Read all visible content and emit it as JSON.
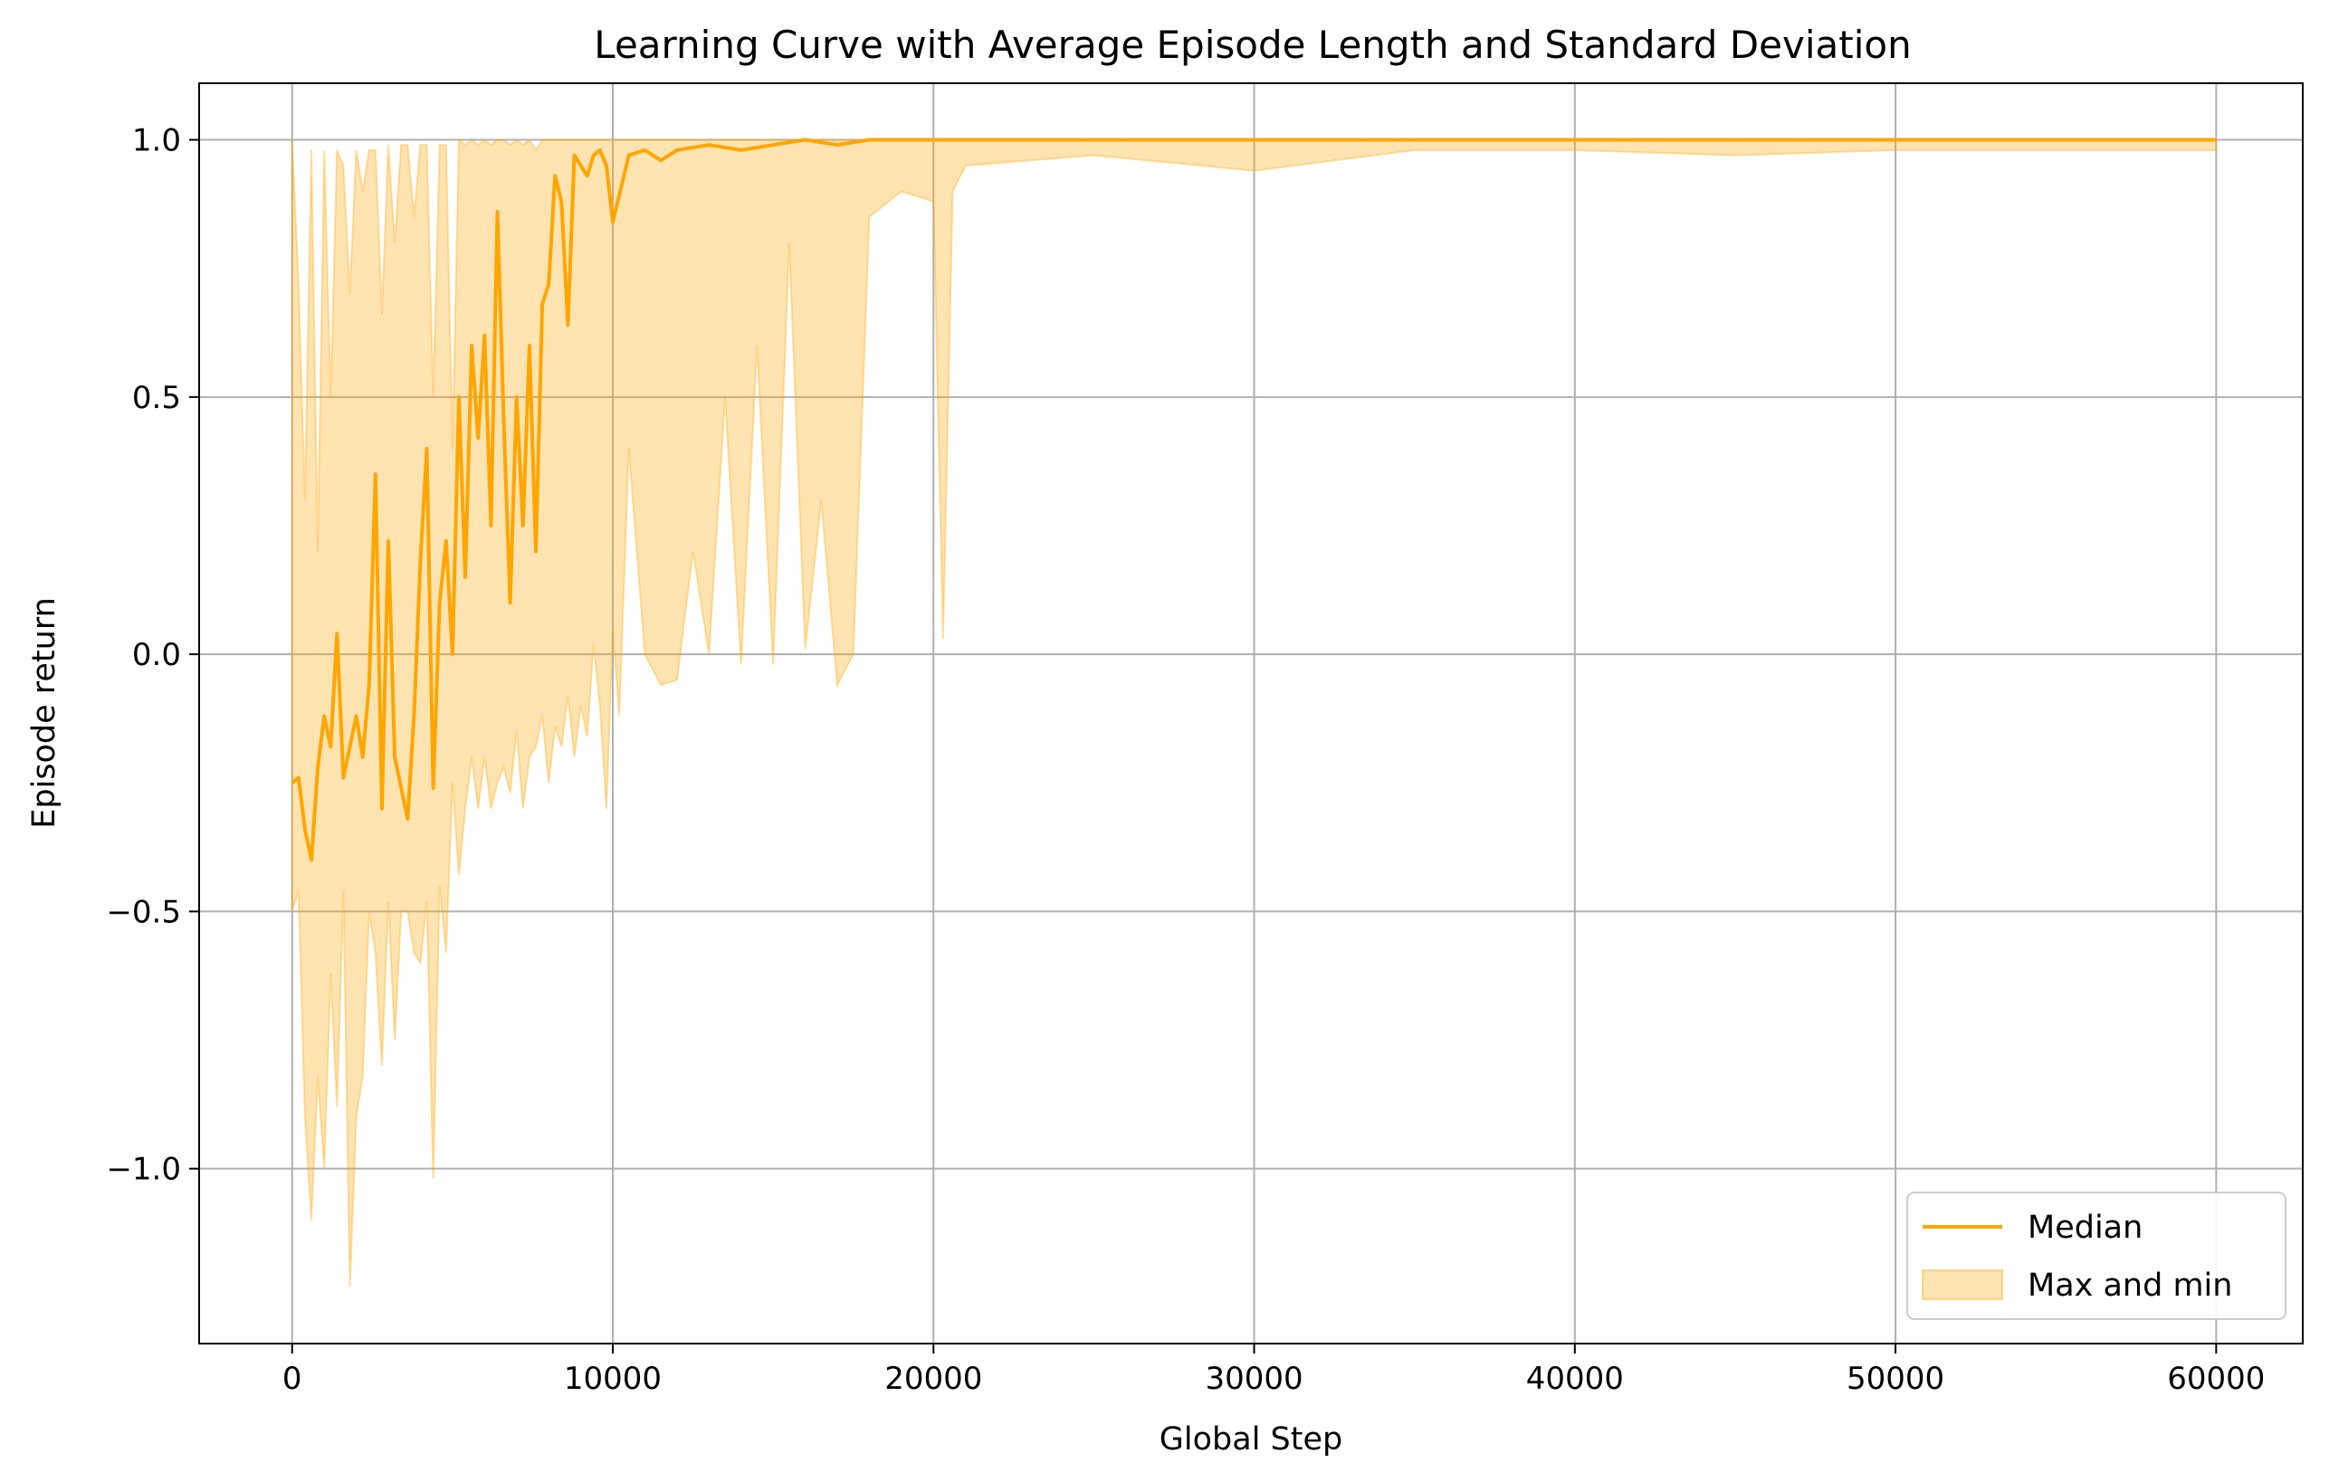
{
  "chart_data": {
    "type": "line",
    "title": "Learning Curve with Average Episode Length and Standard Deviation",
    "xlabel": "Global Step",
    "ylabel": "Episode return",
    "xlim": [
      -2900,
      62700
    ],
    "ylim": [
      -1.34,
      1.11
    ],
    "xticks": [
      0,
      10000,
      20000,
      30000,
      40000,
      50000,
      60000
    ],
    "xtick_labels": [
      "0",
      "10000",
      "20000",
      "30000",
      "40000",
      "50000",
      "60000"
    ],
    "yticks": [
      -1.0,
      -0.5,
      0.0,
      0.5,
      1.0
    ],
    "ytick_labels": [
      "−1.0",
      "−0.5",
      "0.0",
      "0.5",
      "1.0"
    ],
    "grid": true,
    "legend_position": "lower-right",
    "colors": {
      "line": "#FFA500",
      "band": "#FFA500",
      "grid": "#B0B0B0"
    },
    "series": [
      {
        "name": "Median",
        "kind": "line",
        "x": [
          0,
          200,
          400,
          600,
          800,
          1000,
          1200,
          1400,
          1600,
          1800,
          2000,
          2200,
          2400,
          2600,
          2800,
          3000,
          3200,
          3400,
          3600,
          3800,
          4000,
          4200,
          4400,
          4600,
          4800,
          5000,
          5200,
          5400,
          5600,
          5800,
          6000,
          6200,
          6400,
          6600,
          6800,
          7000,
          7200,
          7400,
          7600,
          7800,
          8000,
          8200,
          8400,
          8600,
          8800,
          9000,
          9200,
          9400,
          9600,
          9800,
          10000,
          10500,
          11000,
          11500,
          12000,
          13000,
          14000,
          15000,
          16000,
          17000,
          18000,
          20000,
          25000,
          30000,
          40000,
          50000,
          60000
        ],
        "y": [
          -0.25,
          -0.24,
          -0.34,
          -0.4,
          -0.22,
          -0.12,
          -0.18,
          0.04,
          -0.24,
          -0.18,
          -0.12,
          -0.2,
          -0.06,
          0.35,
          -0.3,
          0.22,
          -0.2,
          -0.26,
          -0.32,
          -0.12,
          0.18,
          0.4,
          -0.26,
          0.1,
          0.22,
          0.0,
          0.5,
          0.15,
          0.6,
          0.42,
          0.62,
          0.25,
          0.86,
          0.45,
          0.1,
          0.5,
          0.25,
          0.6,
          0.2,
          0.68,
          0.72,
          0.93,
          0.88,
          0.64,
          0.97,
          0.95,
          0.93,
          0.97,
          0.98,
          0.95,
          0.84,
          0.97,
          0.98,
          0.96,
          0.98,
          0.99,
          0.98,
          0.99,
          1.0,
          0.99,
          1.0,
          1.0,
          1.0,
          1.0,
          1.0,
          1.0,
          1.0
        ]
      },
      {
        "name": "Max and min",
        "kind": "band",
        "x": [
          0,
          200,
          400,
          600,
          800,
          1000,
          1200,
          1400,
          1600,
          1800,
          2000,
          2200,
          2400,
          2600,
          2800,
          3000,
          3200,
          3400,
          3600,
          3800,
          4000,
          4200,
          4400,
          4600,
          4800,
          5000,
          5200,
          5400,
          5600,
          5800,
          6000,
          6200,
          6400,
          6600,
          6800,
          7000,
          7200,
          7400,
          7600,
          7800,
          8000,
          8200,
          8400,
          8600,
          8800,
          9000,
          9200,
          9400,
          9600,
          9800,
          10000,
          10200,
          10500,
          11000,
          11500,
          12000,
          12500,
          13000,
          13500,
          14000,
          14500,
          15000,
          15500,
          16000,
          16500,
          17000,
          17500,
          18000,
          19000,
          20000,
          20300,
          20600,
          21000,
          25000,
          30000,
          35000,
          40000,
          45000,
          50000,
          55000,
          60000
        ],
        "upper": [
          1.0,
          0.72,
          0.3,
          0.98,
          0.2,
          0.98,
          0.5,
          0.98,
          0.95,
          0.7,
          0.98,
          0.9,
          0.98,
          0.98,
          0.66,
          0.99,
          0.8,
          0.99,
          0.99,
          0.85,
          0.99,
          0.99,
          0.5,
          0.99,
          0.99,
          0.4,
          1.0,
          0.99,
          1.0,
          0.99,
          1.0,
          0.99,
          1.0,
          1.0,
          0.99,
          1.0,
          0.99,
          1.0,
          0.98,
          1.0,
          1.0,
          1.0,
          1.0,
          1.0,
          1.0,
          1.0,
          1.0,
          1.0,
          1.0,
          1.0,
          1.0,
          1.0,
          1.0,
          1.0,
          1.0,
          1.0,
          1.0,
          1.0,
          1.0,
          1.0,
          1.0,
          1.0,
          1.0,
          1.0,
          1.0,
          1.0,
          1.0,
          1.0,
          1.0,
          1.0,
          1.0,
          1.0,
          1.0,
          1.0,
          1.0,
          1.0,
          1.0,
          1.0,
          1.0,
          1.0,
          1.0
        ],
        "lower": [
          -0.5,
          -0.46,
          -0.9,
          -1.1,
          -0.82,
          -1.0,
          -0.62,
          -0.88,
          -0.46,
          -1.23,
          -0.9,
          -0.82,
          -0.5,
          -0.58,
          -0.8,
          -0.48,
          -0.75,
          -0.5,
          -0.5,
          -0.58,
          -0.6,
          -0.48,
          -1.02,
          -0.45,
          -0.58,
          -0.25,
          -0.43,
          -0.3,
          -0.2,
          -0.3,
          -0.2,
          -0.3,
          -0.25,
          -0.22,
          -0.27,
          -0.15,
          -0.3,
          -0.2,
          -0.18,
          -0.12,
          -0.25,
          -0.14,
          -0.18,
          -0.08,
          -0.2,
          -0.1,
          -0.16,
          0.02,
          -0.1,
          -0.3,
          0.05,
          -0.12,
          0.4,
          0.0,
          -0.06,
          -0.05,
          0.2,
          0.0,
          0.5,
          -0.02,
          0.6,
          -0.02,
          0.8,
          0.01,
          0.3,
          -0.06,
          0.0,
          0.85,
          0.9,
          0.88,
          0.03,
          0.9,
          0.95,
          0.97,
          0.94,
          0.98,
          0.98,
          0.97,
          0.98,
          0.98,
          0.98
        ]
      }
    ]
  }
}
